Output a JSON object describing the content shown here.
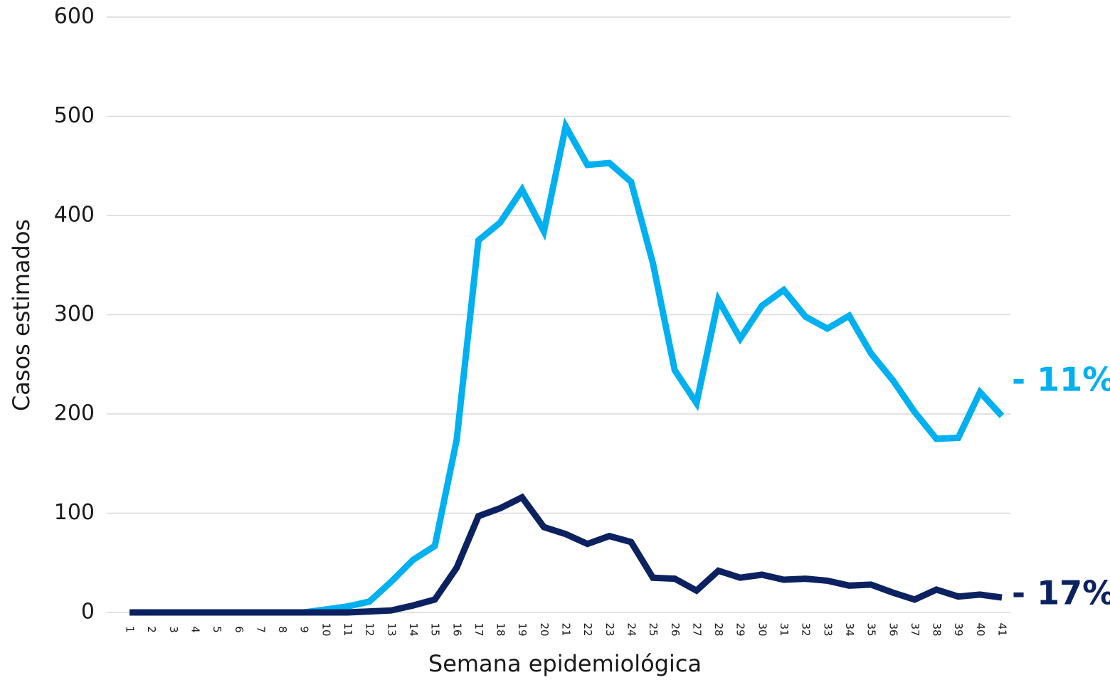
{
  "chart_data": {
    "type": "line",
    "xlabel": "Semana epidemiológica",
    "ylabel": "Casos estimados",
    "x": [
      1,
      2,
      3,
      4,
      5,
      6,
      7,
      8,
      9,
      10,
      11,
      12,
      13,
      14,
      15,
      16,
      17,
      18,
      19,
      20,
      21,
      22,
      23,
      24,
      25,
      26,
      27,
      28,
      29,
      30,
      31,
      32,
      33,
      34,
      35,
      36,
      37,
      38,
      39,
      40,
      41
    ],
    "xlim": [
      1,
      41
    ],
    "ylim": [
      0,
      600
    ],
    "yticks": [
      0,
      100,
      200,
      300,
      400,
      500,
      600
    ],
    "grid": true,
    "series": [
      {
        "color": "#00b0f0",
        "label": "- 11%",
        "values": [
          0,
          0,
          0,
          0,
          0,
          0,
          0,
          0,
          0,
          3,
          6,
          11,
          31,
          53,
          67,
          174,
          375,
          393,
          426,
          384,
          490,
          451,
          453,
          434,
          352,
          244,
          211,
          315,
          276,
          309,
          325,
          298,
          286,
          299,
          261,
          234,
          202,
          175,
          176,
          222,
          198
        ]
      },
      {
        "color": "#0b2160",
        "label": "- 17%",
        "values": [
          0,
          0,
          0,
          0,
          0,
          0,
          0,
          0,
          0,
          0,
          0,
          1,
          2,
          7,
          13,
          45,
          97,
          105,
          116,
          86,
          79,
          69,
          77,
          71,
          35,
          34,
          22,
          42,
          35,
          38,
          33,
          34,
          32,
          27,
          28,
          20,
          13,
          23,
          16,
          18,
          15
        ]
      }
    ]
  }
}
